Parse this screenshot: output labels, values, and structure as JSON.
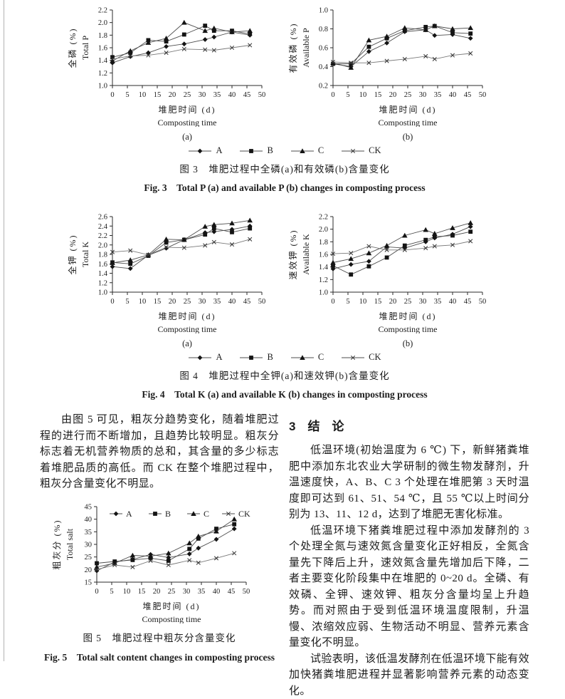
{
  "page": {
    "background": "#ffffff",
    "ink": "#1c1c1c",
    "axis": "#2b2b2b",
    "line": "#4d4d4d",
    "line_light": "#7a7a7a",
    "marker": "#141414",
    "edge_line": "#b3b3b3"
  },
  "legend_items": [
    {
      "label": "A",
      "marker": "diamond"
    },
    {
      "label": "B",
      "marker": "square"
    },
    {
      "label": "C",
      "marker": "triangle"
    },
    {
      "label": "CK",
      "marker": "x"
    }
  ],
  "figures": {
    "fig3": {
      "caption_zh": "图 3　堆肥过程中全磷(a)和有效磷(b)含量变化",
      "caption_en": "Fig. 3　Total P (a) and available P (b) changes in composting process"
    },
    "fig4": {
      "caption_zh": "图 4　堆肥过程中全钾(a)和速效钾(b)含量变化",
      "caption_en": "Fig. 4　Total K (a) and available K (b) changes in composting process"
    },
    "fig5": {
      "caption_zh": "图 5　堆肥过程中粗灰分含量变化",
      "caption_en": "Fig. 5　Total salt content changes in composting process"
    }
  },
  "chart_data": [
    {
      "id": "fig3a",
      "type": "line",
      "title": "",
      "ylabel_zh": "全磷 (%)",
      "ylabel_en": "Total P",
      "xlabel_zh": "堆肥时间 (d)",
      "xlabel_en": "Composting time",
      "sublabel": "(a)",
      "xlim": [
        0,
        50
      ],
      "xstep": 5,
      "ylim": [
        1.0,
        2.2
      ],
      "ystep": 0.2,
      "y_decimals": 1,
      "grid": false,
      "legend_position": "below",
      "x": [
        0,
        6,
        12,
        18,
        24,
        31,
        34,
        40,
        46
      ],
      "series": [
        {
          "name": "A",
          "marker": "diamond",
          "values": [
            1.36,
            1.46,
            1.52,
            1.62,
            1.66,
            1.73,
            1.77,
            1.85,
            1.8
          ]
        },
        {
          "name": "B",
          "marker": "square",
          "values": [
            1.45,
            1.52,
            1.72,
            1.7,
            1.81,
            1.95,
            1.87,
            1.87,
            1.82
          ]
        },
        {
          "name": "C",
          "marker": "triangle",
          "values": [
            1.39,
            1.55,
            1.68,
            1.75,
            2.0,
            1.87,
            1.91,
            1.85,
            1.87
          ]
        },
        {
          "name": "CK",
          "marker": "x",
          "values": [
            1.42,
            1.47,
            1.48,
            1.52,
            1.58,
            1.57,
            1.56,
            1.6,
            1.64
          ]
        }
      ]
    },
    {
      "id": "fig3b",
      "type": "line",
      "title": "",
      "ylabel_zh": "有效磷 (%)",
      "ylabel_en": "Available P",
      "xlabel_zh": "堆肥时间 (d)",
      "xlabel_en": "Composting time",
      "sublabel": "(b)",
      "xlim": [
        0,
        50
      ],
      "xstep": 5,
      "ylim": [
        0.2,
        1.0
      ],
      "ystep": 0.2,
      "y_decimals": 1,
      "grid": false,
      "legend_position": "below",
      "x": [
        0,
        6,
        12,
        18,
        24,
        31,
        34,
        40,
        46
      ],
      "series": [
        {
          "name": "A",
          "marker": "diamond",
          "values": [
            0.43,
            0.4,
            0.56,
            0.65,
            0.77,
            0.79,
            0.73,
            0.74,
            0.7
          ]
        },
        {
          "name": "B",
          "marker": "square",
          "values": [
            0.43,
            0.43,
            0.61,
            0.7,
            0.78,
            0.82,
            0.83,
            0.76,
            0.75
          ]
        },
        {
          "name": "C",
          "marker": "triangle",
          "values": [
            0.44,
            0.39,
            0.68,
            0.72,
            0.81,
            0.79,
            0.83,
            0.8,
            0.81
          ]
        },
        {
          "name": "CK",
          "marker": "x",
          "values": [
            0.45,
            0.44,
            0.44,
            0.46,
            0.48,
            0.51,
            0.48,
            0.52,
            0.54
          ]
        }
      ]
    },
    {
      "id": "fig4a",
      "type": "line",
      "title": "",
      "ylabel_zh": "全钾 (%)",
      "ylabel_en": "Total K",
      "xlabel_zh": "堆肥时间 (d)",
      "xlabel_en": "Composting time",
      "sublabel": "(a)",
      "xlim": [
        0,
        50
      ],
      "xstep": 5,
      "ylim": [
        1.0,
        2.6
      ],
      "ystep": 0.2,
      "y_decimals": 1,
      "grid": false,
      "legend_position": "below",
      "x": [
        0,
        6,
        12,
        18,
        24,
        31,
        34,
        40,
        46
      ],
      "series": [
        {
          "name": "A",
          "marker": "diamond",
          "values": [
            1.54,
            1.5,
            1.78,
            1.93,
            2.11,
            2.26,
            2.28,
            2.33,
            2.4
          ]
        },
        {
          "name": "B",
          "marker": "square",
          "values": [
            1.63,
            1.6,
            1.77,
            2.05,
            2.11,
            2.22,
            2.35,
            2.27,
            2.35
          ]
        },
        {
          "name": "C",
          "marker": "triangle",
          "values": [
            1.62,
            1.68,
            1.79,
            2.12,
            2.11,
            2.39,
            2.43,
            2.46,
            2.52
          ]
        },
        {
          "name": "CK",
          "marker": "x",
          "values": [
            1.85,
            1.88,
            1.79,
            1.95,
            1.94,
            1.99,
            2.06,
            2.01,
            2.12
          ]
        }
      ]
    },
    {
      "id": "fig4b",
      "type": "line",
      "title": "",
      "ylabel_zh": "速效钾 (%)",
      "ylabel_en": "Available K",
      "xlabel_zh": "堆肥时间 (d)",
      "xlabel_en": "Composting time",
      "sublabel": "(b)",
      "xlim": [
        0,
        50
      ],
      "xstep": 5,
      "ylim": [
        1.0,
        2.2
      ],
      "ystep": 0.2,
      "y_decimals": 1,
      "grid": false,
      "legend_position": "below",
      "x": [
        0,
        6,
        12,
        18,
        24,
        31,
        34,
        40,
        46
      ],
      "series": [
        {
          "name": "A",
          "marker": "diamond",
          "values": [
            1.37,
            1.44,
            1.49,
            1.72,
            1.7,
            1.8,
            1.86,
            1.92,
            2.04
          ]
        },
        {
          "name": "B",
          "marker": "square",
          "values": [
            1.42,
            1.28,
            1.41,
            1.55,
            1.74,
            1.83,
            1.88,
            1.9,
            1.96
          ]
        },
        {
          "name": "C",
          "marker": "triangle",
          "values": [
            1.47,
            1.53,
            1.62,
            1.74,
            1.9,
            1.99,
            1.93,
            2.02,
            2.1
          ]
        },
        {
          "name": "CK",
          "marker": "x",
          "values": [
            1.61,
            1.62,
            1.73,
            1.67,
            1.67,
            1.7,
            1.73,
            1.75,
            1.81
          ]
        }
      ]
    },
    {
      "id": "fig5",
      "type": "line",
      "title": "",
      "ylabel_zh": "粗灰分 (%)",
      "ylabel_en": "Total salt",
      "xlabel_zh": "堆肥时间 (d)",
      "xlabel_en": "Composting time",
      "sublabel": "",
      "xlim": [
        0,
        50
      ],
      "xstep": 5,
      "ylim": [
        15,
        45
      ],
      "ystep": 5,
      "y_decimals": 0,
      "grid": false,
      "legend_position": "inline",
      "x": [
        0,
        6,
        12,
        18,
        24,
        31,
        34,
        40,
        46
      ],
      "series": [
        {
          "name": "A",
          "marker": "diamond",
          "values": [
            19.5,
            23.0,
            24.0,
            26.0,
            24.8,
            26.2,
            28.5,
            32.0,
            36.2
          ]
        },
        {
          "name": "B",
          "marker": "square",
          "values": [
            22.5,
            23.2,
            23.8,
            24.5,
            23.5,
            28.2,
            32.3,
            36.2,
            38.0
          ]
        },
        {
          "name": "C",
          "marker": "triangle",
          "values": [
            21.0,
            22.5,
            25.6,
            25.3,
            26.5,
            30.5,
            33.2,
            35.2,
            40.0
          ]
        },
        {
          "name": "CK",
          "marker": "x",
          "values": [
            20.0,
            21.8,
            21.0,
            23.5,
            21.8,
            23.7,
            22.7,
            24.5,
            26.5
          ]
        }
      ]
    }
  ],
  "text": {
    "left_paragraph": "由图 5 可见，粗灰分趋势变化，随着堆肥过程的进行而不断增加，且趋势比较明显。粗灰分标志着无机营养物质的总和，其含量的多少标志着堆肥品质的高低。而 CK 在整个堆肥过程中，粗灰分含量变化不明显。",
    "conclusion_heading": "3　结　论",
    "conclusion_p1": "低温环境(初始温度为 6 ℃) 下，新鲜猪粪堆肥中添加东北农业大学研制的微生物发酵剂，升温速度快，A、B、C 3 个处理在堆肥第 3 天时温度即可达到 61、51、54 ℃，且 55 ℃以上时间分别为 13、11、12 d，达到了堆肥无害化标准。",
    "conclusion_p2": "低温环境下猪粪堆肥过程中添加发酵剂的 3 个处理全氮与速效氮含量变化正好相反，全氮含量先下降后上升，速效氮含量先增加后下降，二者主要变化阶段集中在堆肥的 0~20 d。全磷、有效磷、全钾、速效钾、粗灰分含量均呈上升趋势。而对照由于受到低温环境温度限制，升温慢、浓缩效应弱、生物活动不明显、营养元素含量变化不明显。",
    "conclusion_p3": "试验表明，该低温发酵剂在低温环境下能有效加快猪粪堆肥进程并显著影响营养元素的动态变化。"
  }
}
